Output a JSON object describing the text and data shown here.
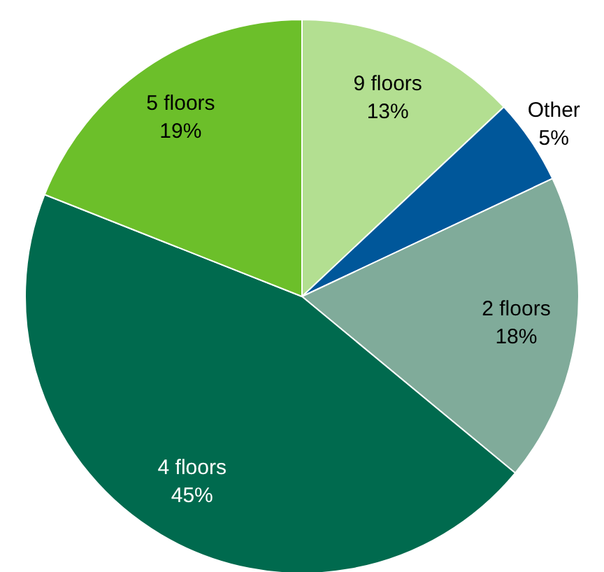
{
  "chart_data": {
    "type": "pie",
    "categories": [
      "9 floors",
      "Other",
      "2 floors",
      "4 floors",
      "5 floors"
    ],
    "values": [
      13,
      5,
      18,
      45,
      19
    ],
    "value_labels": [
      "13%",
      "5%",
      "18%",
      "45%",
      "19%"
    ],
    "colors": [
      "#b3df91",
      "#00579a",
      "#80ab9a",
      "#006a4e",
      "#6cbf2a"
    ],
    "legend": false
  }
}
